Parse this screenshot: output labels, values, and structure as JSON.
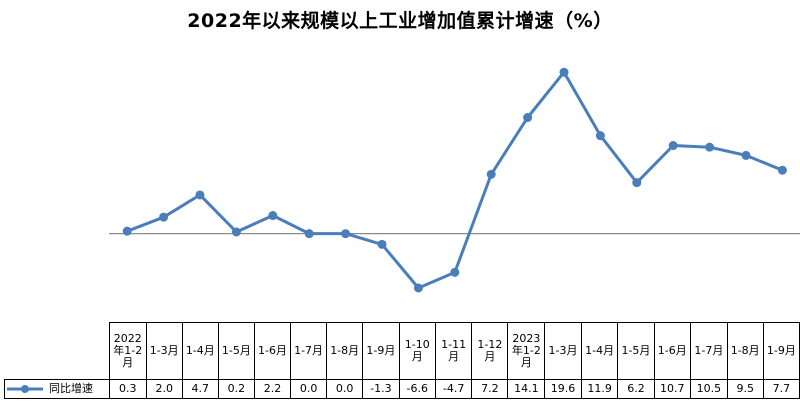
{
  "page": {
    "title": "2022年以来规模以上工业增加值累计增速（%）"
  },
  "chart_data": {
    "type": "line",
    "title": "2022年以来规模以上工业增加值累计增速（%）",
    "xlabel": "",
    "ylabel": "",
    "ylim": [
      -10,
      24
    ],
    "grid": false,
    "zero_line": true,
    "legend": "data-table",
    "categories": [
      "2022年1-2月",
      "1-3月",
      "1-4月",
      "1-5月",
      "1-6月",
      "1-7月",
      "1-8月",
      "1-9月",
      "1-10月",
      "1-11月",
      "1-12月",
      "2023年1-2月",
      "1-3月",
      "1-4月",
      "1-5月",
      "1-6月",
      "1-7月",
      "1-8月",
      "1-9月"
    ],
    "table_headers": [
      "2022年1-2月",
      "1-3月",
      "1-4月",
      "1-5月",
      "1-6月",
      "1-7月",
      "1-8月",
      "1-9月",
      "1-10月",
      "1-11月",
      "1-12月",
      "2023年1-2月",
      "1-3月",
      "1-4月",
      "1-5月",
      "1-6月",
      "1-7月",
      "1-8月",
      "1-9月"
    ],
    "series": [
      {
        "name": "同比增速",
        "color": "#4a7ebb",
        "values": [
          0.3,
          2.0,
          4.7,
          0.2,
          2.2,
          0.0,
          0.0,
          -1.3,
          -6.6,
          -4.7,
          7.2,
          14.1,
          19.6,
          11.9,
          6.2,
          10.7,
          10.5,
          9.5,
          7.7
        ],
        "labels": [
          "0.3",
          "2.0",
          "4.7",
          "0.2",
          "2.2",
          "0.0",
          "0.0",
          "-1.3",
          "-6.6",
          "-4.7",
          "7.2",
          "14.1",
          "19.6",
          "11.9",
          "6.2",
          "10.7",
          "10.5",
          "9.5",
          "7.7"
        ]
      }
    ]
  }
}
